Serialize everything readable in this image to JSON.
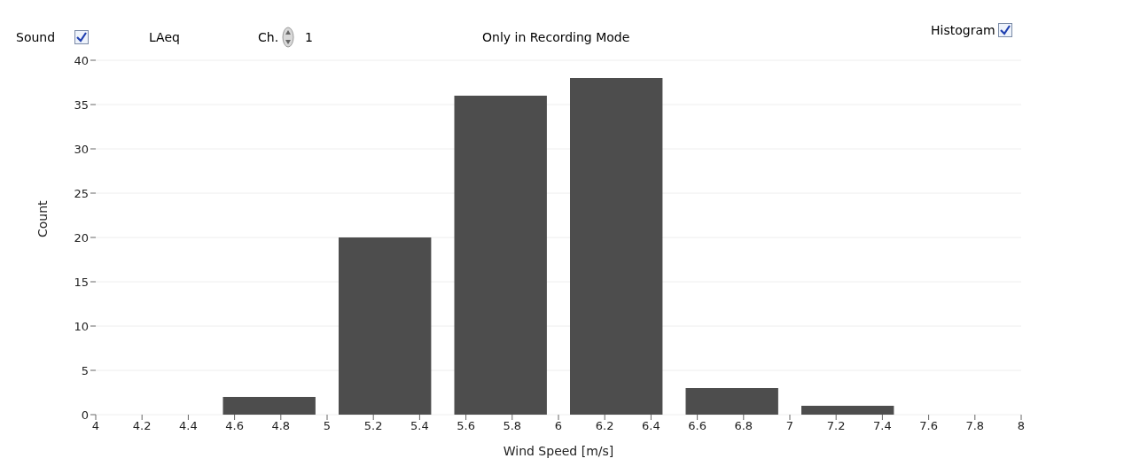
{
  "chart_data": {
    "type": "histogram",
    "xlabel": "Wind Speed [m/s]",
    "ylabel": "Count",
    "bins": [
      4,
      4.5,
      5,
      5.5,
      6,
      6.5,
      7,
      7.5,
      8
    ],
    "values": [
      0,
      2,
      20,
      36,
      38,
      3,
      1,
      0
    ],
    "color": "#4d4d4d",
    "xlim": [
      4,
      8
    ],
    "xticks": [
      4,
      4.2,
      4.4,
      4.6,
      4.8,
      5,
      5.2,
      5.4,
      5.6,
      5.8,
      6,
      6.2,
      6.4,
      6.6,
      6.8,
      7,
      7.2,
      7.4,
      7.6,
      7.8,
      8
    ],
    "ylim": [
      0,
      40
    ],
    "yticks": [
      0,
      5,
      10,
      15,
      20,
      25,
      30,
      35,
      40
    ],
    "grid": "y",
    "legend": false,
    "annotations": [
      "Sound",
      "LAeq",
      "Ch.",
      "1",
      "Only in Recording Mode",
      "Histogram"
    ]
  }
}
